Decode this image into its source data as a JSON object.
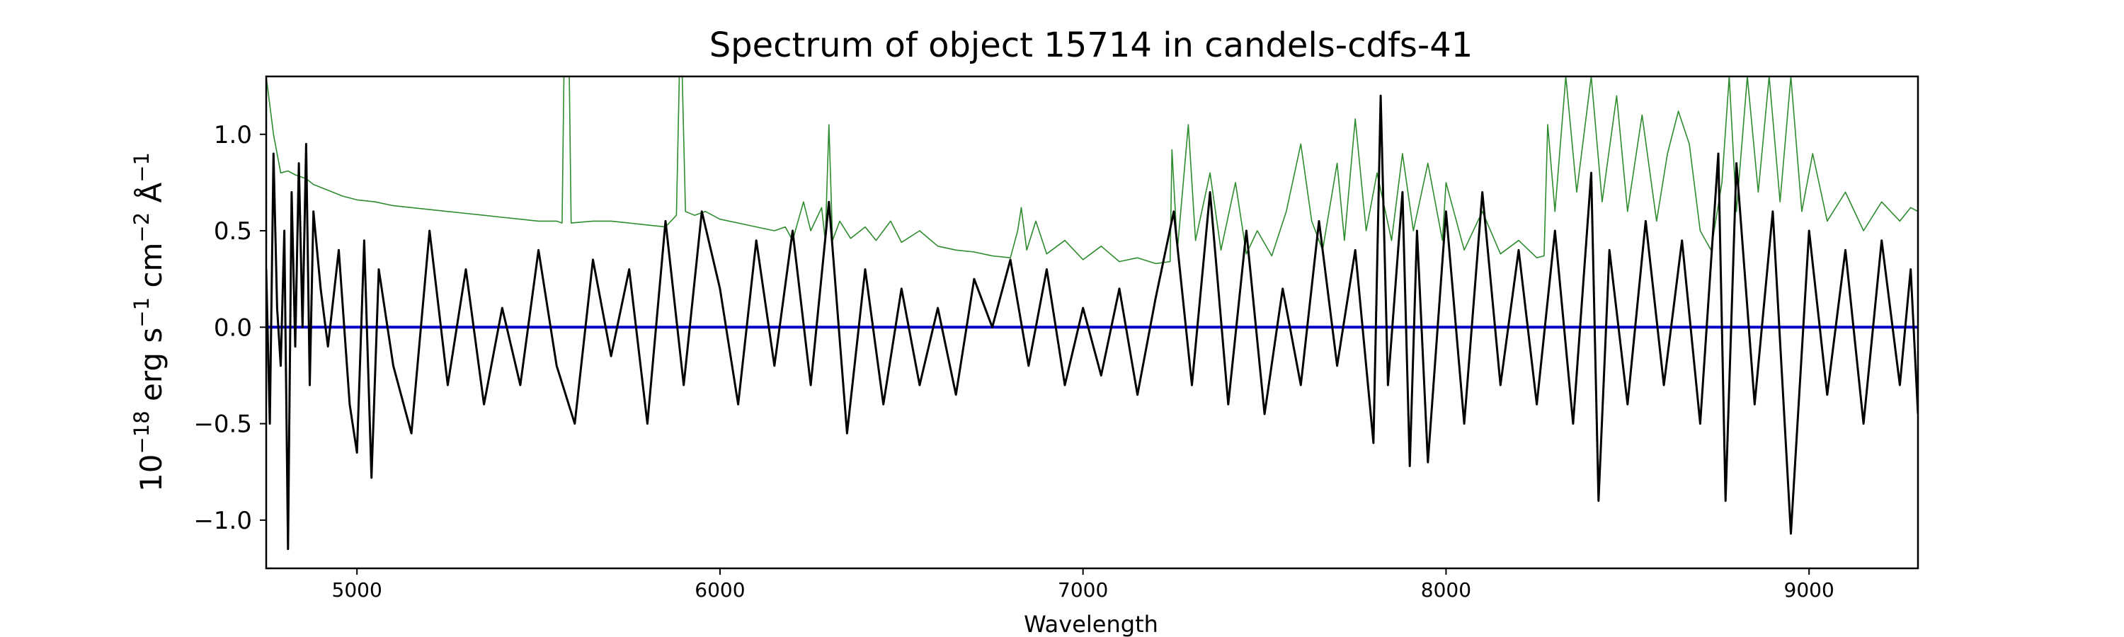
{
  "chart_data": {
    "type": "line",
    "title": "Spectrum of object 15714 in candels-cdfs-41",
    "xlabel": "Wavelength",
    "ylabel": {
      "base": "10",
      "exp1": "−18",
      "unit1": " erg s",
      "exp2": "−1",
      "unit2": " cm",
      "exp3": "−2",
      "unit3": " Å",
      "exp4": "−1"
    },
    "xlim": [
      4750,
      9300
    ],
    "ylim": [
      -1.25,
      1.3
    ],
    "xticks": [
      5000,
      6000,
      7000,
      8000,
      9000
    ],
    "xtick_labels": [
      "5000",
      "6000",
      "7000",
      "8000",
      "9000"
    ],
    "yticks": [
      -1.0,
      -0.5,
      0.0,
      0.5,
      1.0
    ],
    "ytick_labels": [
      "−1.0",
      "−0.5",
      "0.0",
      "0.5",
      "1.0"
    ],
    "grid": false,
    "series": [
      {
        "role": "error",
        "color": "#2e8b2e",
        "points": [
          [
            4750,
            1.3
          ],
          [
            4770,
            1.0
          ],
          [
            4790,
            0.8
          ],
          [
            4810,
            0.81
          ],
          [
            4830,
            0.79
          ],
          [
            4860,
            0.77
          ],
          [
            4880,
            0.74
          ],
          [
            4920,
            0.71
          ],
          [
            4960,
            0.68
          ],
          [
            5000,
            0.66
          ],
          [
            5050,
            0.65
          ],
          [
            5100,
            0.63
          ],
          [
            5150,
            0.62
          ],
          [
            5200,
            0.61
          ],
          [
            5250,
            0.6
          ],
          [
            5300,
            0.59
          ],
          [
            5350,
            0.58
          ],
          [
            5400,
            0.57
          ],
          [
            5450,
            0.56
          ],
          [
            5500,
            0.55
          ],
          [
            5550,
            0.55
          ],
          [
            5565,
            0.54
          ],
          [
            5570,
            1.3
          ],
          [
            5585,
            1.3
          ],
          [
            5590,
            0.54
          ],
          [
            5650,
            0.55
          ],
          [
            5700,
            0.55
          ],
          [
            5750,
            0.54
          ],
          [
            5800,
            0.53
          ],
          [
            5850,
            0.52
          ],
          [
            5880,
            0.58
          ],
          [
            5888,
            1.3
          ],
          [
            5896,
            1.3
          ],
          [
            5905,
            0.6
          ],
          [
            5930,
            0.58
          ],
          [
            5960,
            0.6
          ],
          [
            6000,
            0.56
          ],
          [
            6050,
            0.54
          ],
          [
            6100,
            0.52
          ],
          [
            6150,
            0.5
          ],
          [
            6180,
            0.52
          ],
          [
            6200,
            0.45
          ],
          [
            6230,
            0.65
          ],
          [
            6250,
            0.5
          ],
          [
            6280,
            0.62
          ],
          [
            6290,
            0.45
          ],
          [
            6300,
            1.05
          ],
          [
            6310,
            0.45
          ],
          [
            6330,
            0.55
          ],
          [
            6360,
            0.46
          ],
          [
            6400,
            0.52
          ],
          [
            6430,
            0.45
          ],
          [
            6470,
            0.55
          ],
          [
            6500,
            0.44
          ],
          [
            6550,
            0.5
          ],
          [
            6600,
            0.42
          ],
          [
            6650,
            0.4
          ],
          [
            6700,
            0.39
          ],
          [
            6750,
            0.37
          ],
          [
            6800,
            0.36
          ],
          [
            6820,
            0.5
          ],
          [
            6830,
            0.62
          ],
          [
            6845,
            0.4
          ],
          [
            6870,
            0.55
          ],
          [
            6900,
            0.38
          ],
          [
            6950,
            0.45
          ],
          [
            7000,
            0.35
          ],
          [
            7050,
            0.42
          ],
          [
            7100,
            0.34
          ],
          [
            7150,
            0.36
          ],
          [
            7200,
            0.33
          ],
          [
            7240,
            0.34
          ],
          [
            7245,
            0.92
          ],
          [
            7260,
            0.4
          ],
          [
            7290,
            1.05
          ],
          [
            7310,
            0.45
          ],
          [
            7350,
            0.8
          ],
          [
            7380,
            0.4
          ],
          [
            7420,
            0.75
          ],
          [
            7450,
            0.38
          ],
          [
            7480,
            0.5
          ],
          [
            7520,
            0.37
          ],
          [
            7560,
            0.6
          ],
          [
            7600,
            0.95
          ],
          [
            7630,
            0.55
          ],
          [
            7660,
            0.4
          ],
          [
            7700,
            0.85
          ],
          [
            7720,
            0.45
          ],
          [
            7750,
            1.08
          ],
          [
            7780,
            0.5
          ],
          [
            7810,
            0.8
          ],
          [
            7850,
            0.45
          ],
          [
            7880,
            0.9
          ],
          [
            7910,
            0.5
          ],
          [
            7950,
            0.85
          ],
          [
            7990,
            0.45
          ],
          [
            8000,
            0.75
          ],
          [
            8050,
            0.4
          ],
          [
            8100,
            0.6
          ],
          [
            8150,
            0.38
          ],
          [
            8200,
            0.45
          ],
          [
            8250,
            0.36
          ],
          [
            8270,
            0.37
          ],
          [
            8280,
            1.05
          ],
          [
            8300,
            0.6
          ],
          [
            8330,
            1.3
          ],
          [
            8360,
            0.7
          ],
          [
            8400,
            1.3
          ],
          [
            8430,
            0.65
          ],
          [
            8470,
            1.2
          ],
          [
            8500,
            0.6
          ],
          [
            8540,
            1.1
          ],
          [
            8580,
            0.55
          ],
          [
            8610,
            0.9
          ],
          [
            8640,
            1.12
          ],
          [
            8670,
            0.95
          ],
          [
            8700,
            0.5
          ],
          [
            8730,
            0.4
          ],
          [
            8760,
            0.75
          ],
          [
            8780,
            1.3
          ],
          [
            8800,
            0.6
          ],
          [
            8830,
            1.3
          ],
          [
            8860,
            0.7
          ],
          [
            8890,
            1.3
          ],
          [
            8920,
            0.65
          ],
          [
            8950,
            1.3
          ],
          [
            8980,
            0.6
          ],
          [
            9010,
            0.9
          ],
          [
            9050,
            0.55
          ],
          [
            9100,
            0.7
          ],
          [
            9150,
            0.5
          ],
          [
            9200,
            0.65
          ],
          [
            9250,
            0.55
          ],
          [
            9280,
            0.62
          ],
          [
            9300,
            0.6
          ]
        ]
      },
      {
        "role": "model",
        "color": "#0000cc",
        "points": [
          [
            4750,
            0.0
          ],
          [
            9300,
            0.0
          ]
        ]
      },
      {
        "role": "flux",
        "color": "#000000",
        "points": [
          [
            4750,
            0.3
          ],
          [
            4760,
            -0.5
          ],
          [
            4770,
            0.9
          ],
          [
            4780,
            0.1
          ],
          [
            4790,
            -0.2
          ],
          [
            4800,
            0.5
          ],
          [
            4810,
            -1.15
          ],
          [
            4820,
            0.7
          ],
          [
            4830,
            -0.1
          ],
          [
            4840,
            0.85
          ],
          [
            4850,
            0.0
          ],
          [
            4860,
            0.95
          ],
          [
            4870,
            -0.3
          ],
          [
            4880,
            0.6
          ],
          [
            4900,
            0.2
          ],
          [
            4920,
            -0.1
          ],
          [
            4950,
            0.4
          ],
          [
            4980,
            -0.4
          ],
          [
            5000,
            -0.65
          ],
          [
            5020,
            0.45
          ],
          [
            5040,
            -0.78
          ],
          [
            5060,
            0.3
          ],
          [
            5100,
            -0.2
          ],
          [
            5150,
            -0.55
          ],
          [
            5200,
            0.5
          ],
          [
            5250,
            -0.3
          ],
          [
            5300,
            0.3
          ],
          [
            5350,
            -0.4
          ],
          [
            5400,
            0.1
          ],
          [
            5450,
            -0.3
          ],
          [
            5500,
            0.4
          ],
          [
            5550,
            -0.2
          ],
          [
            5600,
            -0.5
          ],
          [
            5650,
            0.35
          ],
          [
            5700,
            -0.15
          ],
          [
            5750,
            0.3
          ],
          [
            5800,
            -0.5
          ],
          [
            5850,
            0.55
          ],
          [
            5900,
            -0.3
          ],
          [
            5950,
            0.6
          ],
          [
            6000,
            0.2
          ],
          [
            6050,
            -0.4
          ],
          [
            6100,
            0.45
          ],
          [
            6150,
            -0.2
          ],
          [
            6200,
            0.5
          ],
          [
            6250,
            -0.3
          ],
          [
            6300,
            0.65
          ],
          [
            6350,
            -0.55
          ],
          [
            6400,
            0.3
          ],
          [
            6450,
            -0.4
          ],
          [
            6500,
            0.2
          ],
          [
            6550,
            -0.3
          ],
          [
            6600,
            0.1
          ],
          [
            6650,
            -0.35
          ],
          [
            6700,
            0.25
          ],
          [
            6750,
            0.0
          ],
          [
            6800,
            0.35
          ],
          [
            6850,
            -0.2
          ],
          [
            6900,
            0.3
          ],
          [
            6950,
            -0.3
          ],
          [
            7000,
            0.1
          ],
          [
            7050,
            -0.25
          ],
          [
            7100,
            0.2
          ],
          [
            7150,
            -0.35
          ],
          [
            7200,
            0.15
          ],
          [
            7250,
            0.6
          ],
          [
            7300,
            -0.3
          ],
          [
            7350,
            0.7
          ],
          [
            7400,
            -0.4
          ],
          [
            7450,
            0.5
          ],
          [
            7500,
            -0.45
          ],
          [
            7550,
            0.2
          ],
          [
            7600,
            -0.3
          ],
          [
            7650,
            0.55
          ],
          [
            7700,
            -0.2
          ],
          [
            7750,
            0.4
          ],
          [
            7800,
            -0.6
          ],
          [
            7820,
            1.2
          ],
          [
            7840,
            -0.3
          ],
          [
            7880,
            0.7
          ],
          [
            7900,
            -0.72
          ],
          [
            7920,
            0.5
          ],
          [
            7950,
            -0.7
          ],
          [
            8000,
            0.6
          ],
          [
            8050,
            -0.5
          ],
          [
            8100,
            0.7
          ],
          [
            8150,
            -0.3
          ],
          [
            8200,
            0.4
          ],
          [
            8250,
            -0.4
          ],
          [
            8300,
            0.5
          ],
          [
            8350,
            -0.5
          ],
          [
            8400,
            0.8
          ],
          [
            8420,
            -0.9
          ],
          [
            8450,
            0.4
          ],
          [
            8500,
            -0.4
          ],
          [
            8550,
            0.55
          ],
          [
            8600,
            -0.3
          ],
          [
            8650,
            0.45
          ],
          [
            8700,
            -0.5
          ],
          [
            8750,
            0.9
          ],
          [
            8770,
            -0.9
          ],
          [
            8800,
            0.85
          ],
          [
            8850,
            -0.4
          ],
          [
            8900,
            0.6
          ],
          [
            8950,
            -1.07
          ],
          [
            9000,
            0.5
          ],
          [
            9050,
            -0.35
          ],
          [
            9100,
            0.4
          ],
          [
            9150,
            -0.5
          ],
          [
            9200,
            0.45
          ],
          [
            9250,
            -0.3
          ],
          [
            9280,
            0.3
          ],
          [
            9300,
            -0.45
          ]
        ]
      }
    ]
  }
}
